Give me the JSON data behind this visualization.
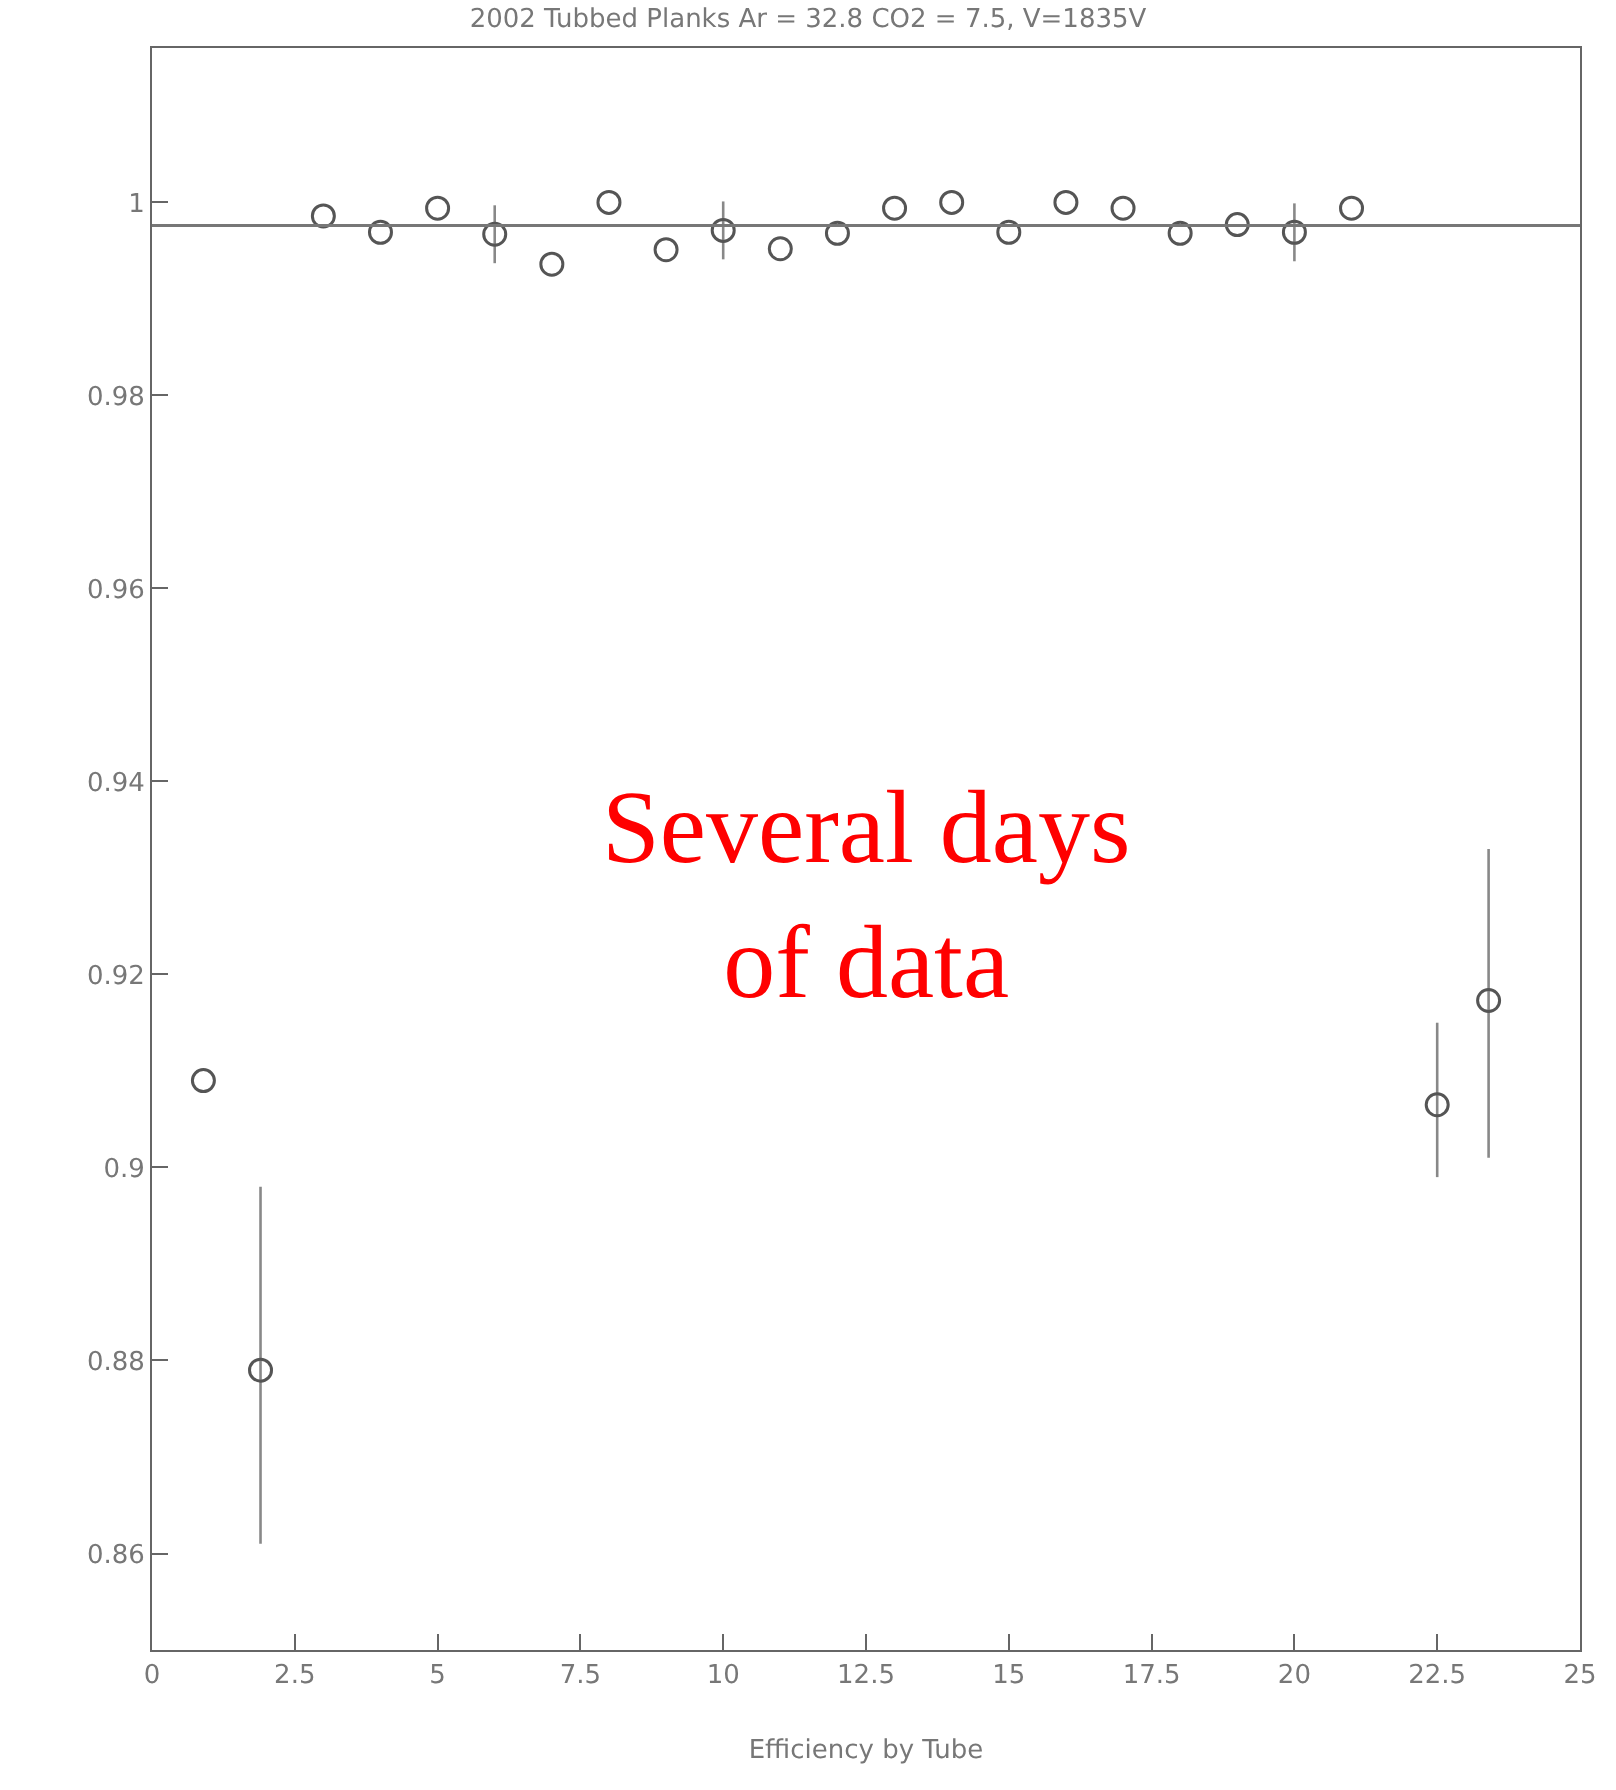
{
  "chart_data": {
    "type": "scatter",
    "title": "2002 Tubbed Planks Ar = 32.8 CO2 = 7.5, V=1835V",
    "xlabel": "Efficiency by Tube",
    "x": [
      0.9,
      1.9,
      3,
      4,
      5,
      6,
      7,
      8,
      9,
      10,
      11,
      12,
      13,
      14,
      15,
      16,
      17,
      18,
      19,
      20,
      21,
      22.5,
      23.4
    ],
    "values": [
      0.909,
      0.879,
      0.9986,
      0.9969,
      0.9994,
      0.9967,
      0.9936,
      1.0,
      0.9951,
      0.9971,
      0.9952,
      0.9968,
      0.9994,
      1.0,
      0.9969,
      1.0,
      0.9994,
      0.9968,
      0.9977,
      0.9969,
      0.9994,
      0.9065,
      0.9173
    ],
    "errors": [
      null,
      [
        0.861,
        0.898
      ],
      null,
      null,
      null,
      0.003,
      null,
      null,
      null,
      0.003,
      null,
      null,
      null,
      null,
      null,
      null,
      null,
      null,
      null,
      0.003,
      null,
      [
        0.899,
        0.915
      ],
      [
        0.901,
        0.933
      ]
    ],
    "color": "#555555",
    "marker": "circle",
    "xlim": [
      0,
      25
    ],
    "ylim": [
      0.85,
      1.016
    ],
    "xticks": [
      0,
      2.5,
      5,
      7.5,
      10,
      12.5,
      15,
      17.5,
      20,
      22.5,
      25
    ],
    "yticks": [
      0.86,
      0.88,
      0.9,
      0.92,
      0.94,
      0.96,
      0.98,
      1
    ],
    "ref_lines": [
      {
        "axis": "y",
        "value": 0.9976,
        "color": "#777777"
      }
    ],
    "annotations": [
      "Several days\nof data"
    ]
  }
}
